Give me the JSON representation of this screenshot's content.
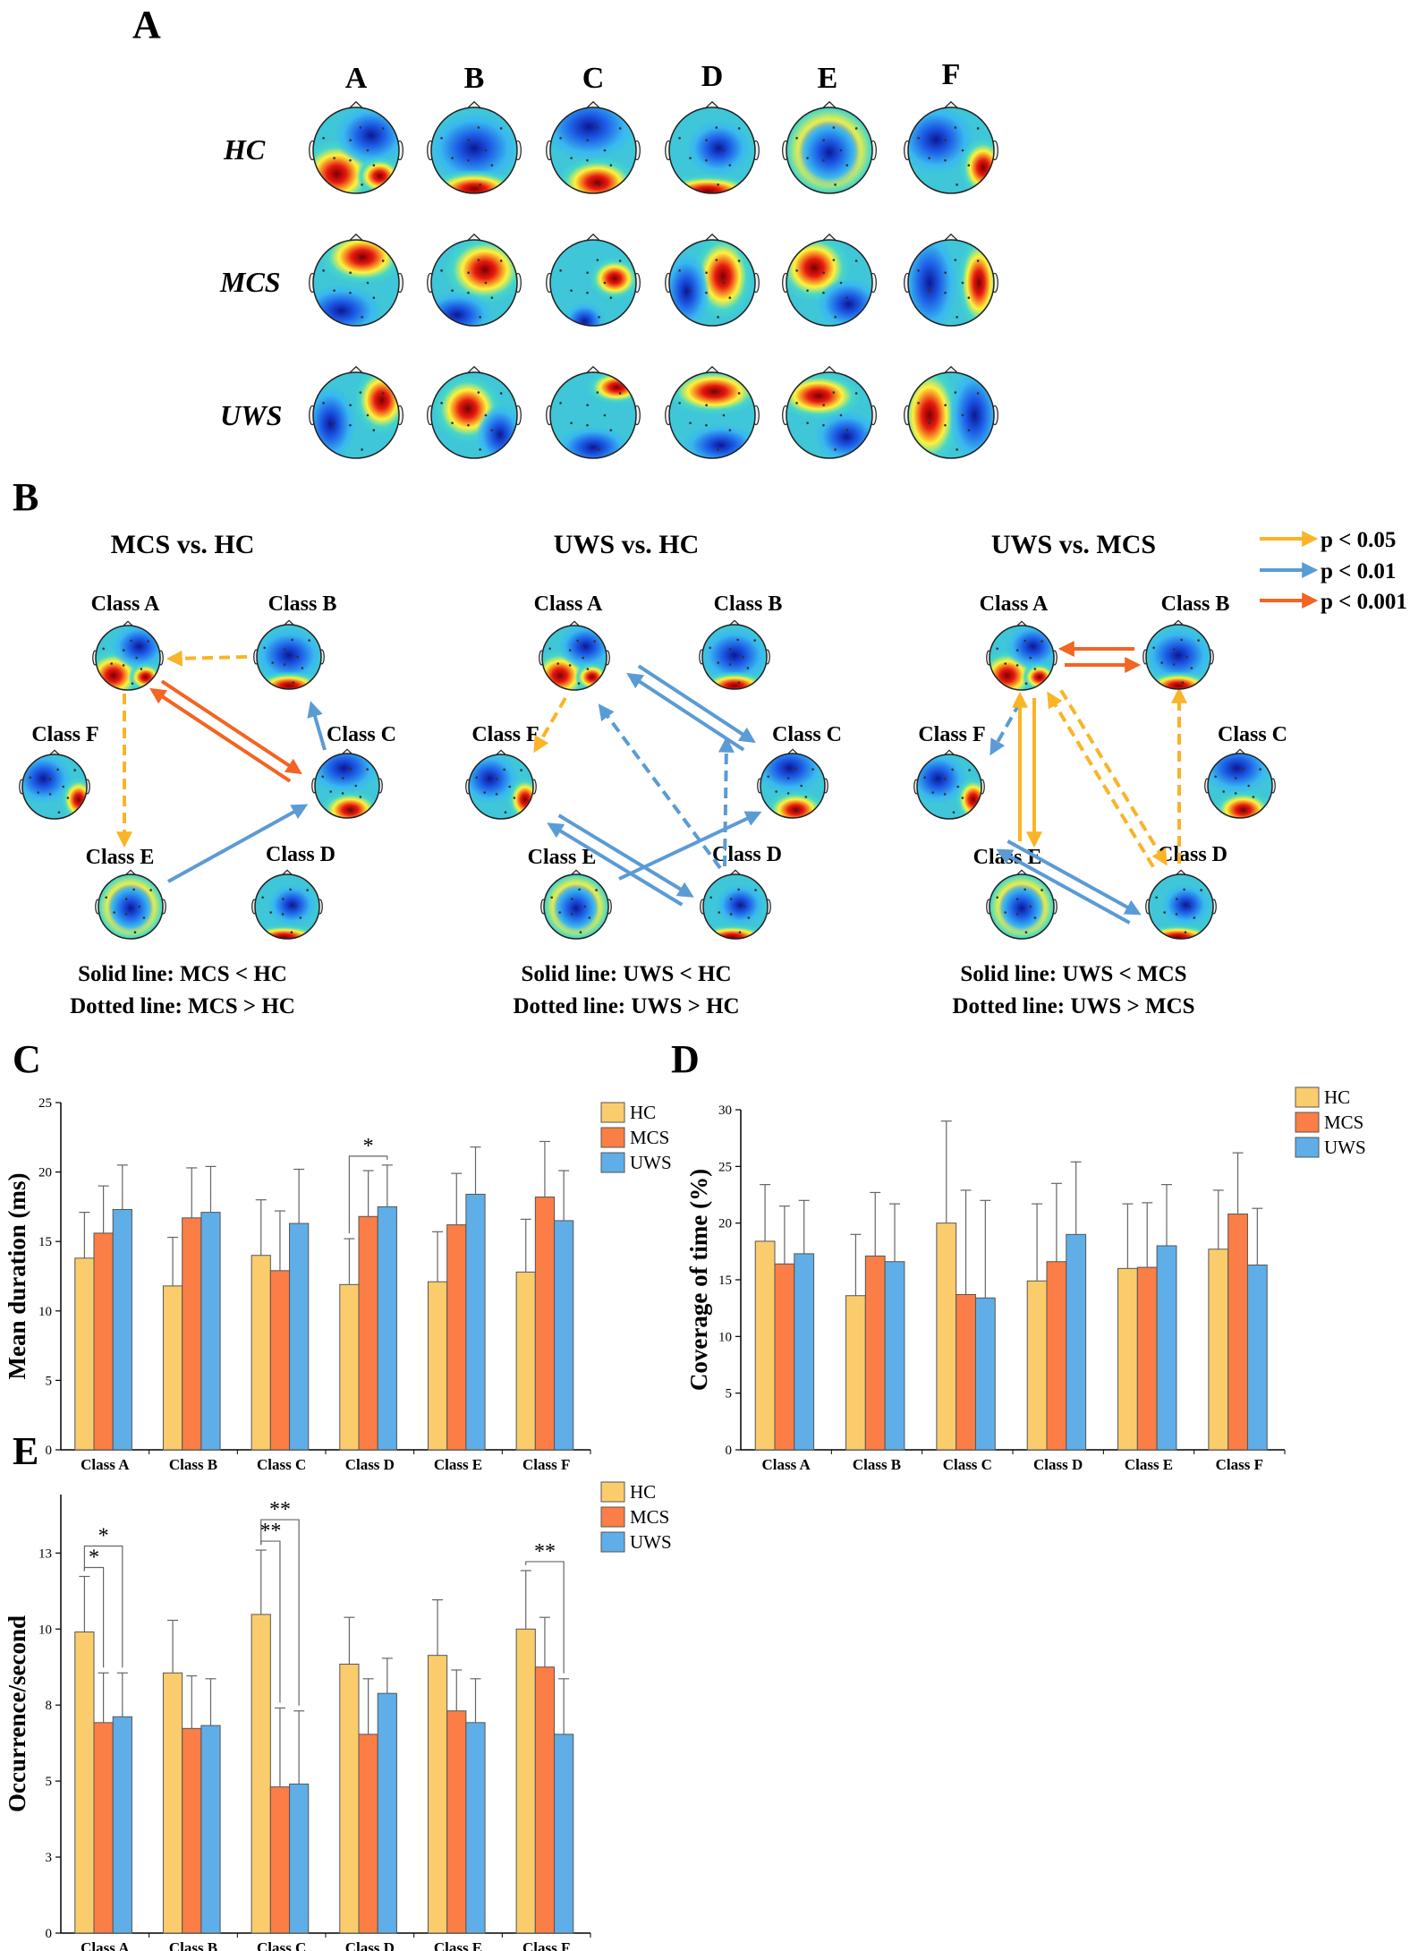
{
  "colors": {
    "HC": "#FBCC6C",
    "MCS": "#FA7E45",
    "UWS": "#5FAEE8",
    "p05": "#F9B427",
    "p01": "#5B9BD5",
    "p001": "#F26522"
  },
  "panel_a": {
    "label": "A",
    "columns": [
      "A",
      "B",
      "C",
      "D",
      "E",
      "F"
    ],
    "rows": [
      "HC",
      "MCS",
      "UWS"
    ]
  },
  "panel_b": {
    "label": "B",
    "legend": [
      {
        "text": "p < 0.05",
        "color": "#F9B427"
      },
      {
        "text": "p < 0.01",
        "color": "#5B9BD5"
      },
      {
        "text": "p < 0.001",
        "color": "#F26522"
      }
    ],
    "networks": [
      {
        "title": "MCS vs. HC",
        "note1": "Solid line: MCS < HC",
        "note2": "Dotted line: MCS > HC"
      },
      {
        "title": "UWS vs. HC",
        "note1": "Solid line: UWS < HC",
        "note2": "Dotted line: UWS > HC"
      },
      {
        "title": "UWS vs. MCS",
        "note1": "Solid line: UWS < MCS",
        "note2": "Dotted line: UWS > MCS"
      }
    ],
    "class_names": [
      "Class A",
      "Class B",
      "Class C",
      "Class D",
      "Class E",
      "Class F"
    ]
  },
  "chart_data": [
    {
      "panel": "C",
      "type": "bar",
      "title": "",
      "xlabel": "",
      "ylabel": "Mean duration (ms)",
      "ylim": [
        0,
        25
      ],
      "yticks": [
        0,
        5,
        10,
        15,
        20,
        25
      ],
      "ytick_labels": [
        "0",
        "5",
        "10",
        "15",
        "20",
        "25"
      ],
      "categories": [
        "Class A",
        "Class B",
        "Class C",
        "Class D",
        "Class E",
        "Class F"
      ],
      "series": [
        {
          "name": "HC",
          "values": [
            13.8,
            11.8,
            14.0,
            11.9,
            12.1,
            12.8
          ],
          "errors": [
            3.3,
            3.5,
            4.0,
            3.3,
            3.6,
            3.8
          ]
        },
        {
          "name": "MCS",
          "values": [
            15.6,
            16.7,
            12.9,
            16.8,
            16.2,
            18.2
          ],
          "errors": [
            3.4,
            3.6,
            4.3,
            3.3,
            3.7,
            4.0
          ]
        },
        {
          "name": "UWS",
          "values": [
            17.3,
            17.1,
            16.3,
            17.5,
            18.4,
            16.5
          ],
          "errors": [
            3.2,
            3.3,
            3.9,
            3.0,
            3.4,
            3.6
          ]
        }
      ],
      "legend": [
        "HC",
        "MCS",
        "UWS"
      ],
      "significance": [
        {
          "category": 3,
          "from": 0,
          "to": 2,
          "label": "*"
        }
      ]
    },
    {
      "panel": "D",
      "type": "bar",
      "title": "",
      "xlabel": "",
      "ylabel": "Coverage of time (%)",
      "ylim": [
        0,
        30
      ],
      "yticks": [
        0,
        5,
        10,
        15,
        20,
        25,
        30
      ],
      "ytick_labels": [
        "0",
        "5",
        "10",
        "15",
        "20",
        "25",
        "30"
      ],
      "categories": [
        "Class A",
        "Class B",
        "Class C",
        "Class D",
        "Class E",
        "Class F"
      ],
      "series": [
        {
          "name": "HC",
          "values": [
            18.4,
            13.6,
            20.0,
            14.9,
            16.0,
            17.7
          ],
          "errors": [
            5.0,
            5.4,
            9.0,
            6.8,
            5.7,
            5.2
          ]
        },
        {
          "name": "MCS",
          "values": [
            16.4,
            17.1,
            13.7,
            16.6,
            16.1,
            20.8
          ],
          "errors": [
            5.1,
            5.6,
            9.2,
            6.9,
            5.7,
            5.4
          ]
        },
        {
          "name": "UWS",
          "values": [
            17.3,
            16.6,
            13.4,
            19.0,
            18.0,
            16.3
          ],
          "errors": [
            4.7,
            5.1,
            8.6,
            6.4,
            5.4,
            5.0
          ]
        }
      ],
      "legend": [
        "HC",
        "MCS",
        "UWS"
      ],
      "significance": []
    },
    {
      "panel": "E",
      "type": "bar",
      "title": "",
      "xlabel": "",
      "ylabel": "Occurrence/second",
      "ylim": [
        0,
        15
      ],
      "yticks": [
        0,
        2.6,
        5.2,
        7.8,
        10.4,
        13.0
      ],
      "ytick_labels": [
        "0",
        "3",
        "5",
        "8",
        "10",
        "13"
      ],
      "categories": [
        "Class A",
        "Class B",
        "Class C",
        "Class D",
        "Class E",
        "Class F"
      ],
      "series": [
        {
          "name": "HC",
          "values": [
            10.3,
            8.9,
            10.9,
            9.2,
            9.5,
            10.4
          ],
          "errors": [
            1.9,
            1.8,
            2.2,
            1.6,
            1.9,
            2.0
          ]
        },
        {
          "name": "MCS",
          "values": [
            7.2,
            7.0,
            5.0,
            6.8,
            7.6,
            9.1
          ],
          "errors": [
            1.7,
            1.8,
            2.7,
            1.9,
            1.4,
            1.7
          ]
        },
        {
          "name": "UWS",
          "values": [
            7.4,
            7.1,
            5.1,
            8.2,
            7.2,
            6.8
          ],
          "errors": [
            1.5,
            1.6,
            2.5,
            1.2,
            1.5,
            1.9
          ]
        }
      ],
      "legend": [
        "HC",
        "MCS",
        "UWS"
      ],
      "significance": [
        {
          "category": 0,
          "from": 0,
          "to": 1,
          "label": "*"
        },
        {
          "category": 0,
          "from": 0,
          "to": 2,
          "label": "*"
        },
        {
          "category": 2,
          "from": 0,
          "to": 1,
          "label": "**"
        },
        {
          "category": 2,
          "from": 0,
          "to": 2,
          "label": "**"
        },
        {
          "category": 5,
          "from": 0,
          "to": 2,
          "label": "**"
        }
      ]
    }
  ]
}
